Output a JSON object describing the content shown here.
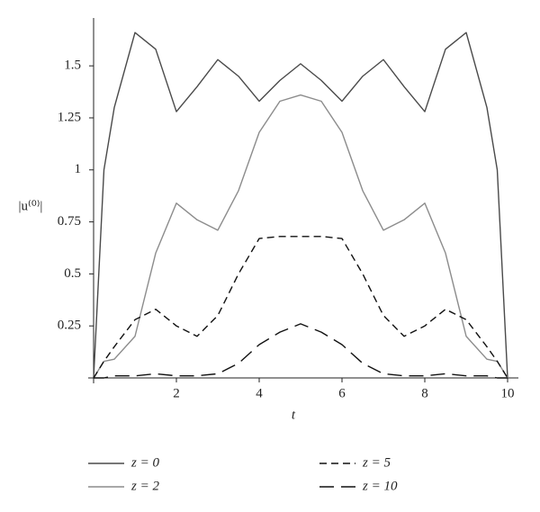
{
  "chart_data": {
    "type": "line",
    "xlabel": "t",
    "ylabel": "|u⁽⁰⁾|",
    "x": [
      0,
      0.25,
      0.5,
      1,
      1.5,
      2,
      2.5,
      3,
      3.5,
      4,
      4.5,
      5,
      5.5,
      6,
      6.5,
      7,
      7.5,
      8,
      8.5,
      9,
      9.5,
      9.75,
      10
    ],
    "series": [
      {
        "name": "z = 0",
        "color": "#4a4a4a",
        "dash": "none",
        "values": [
          0,
          1.0,
          1.3,
          1.66,
          1.58,
          1.28,
          1.4,
          1.53,
          1.45,
          1.33,
          1.43,
          1.51,
          1.43,
          1.33,
          1.45,
          1.53,
          1.4,
          1.28,
          1.58,
          1.66,
          1.3,
          1.0,
          0
        ]
      },
      {
        "name": "z = 2",
        "color": "#8c8c8c",
        "dash": "none",
        "values": [
          0,
          0.08,
          0.09,
          0.2,
          0.6,
          0.84,
          0.76,
          0.71,
          0.9,
          1.18,
          1.33,
          1.36,
          1.33,
          1.18,
          0.9,
          0.71,
          0.76,
          0.84,
          0.6,
          0.2,
          0.09,
          0.08,
          0
        ]
      },
      {
        "name": "z = 5",
        "color": "#111111",
        "dash": "8 5",
        "values": [
          0,
          0.08,
          0.15,
          0.28,
          0.33,
          0.25,
          0.2,
          0.3,
          0.5,
          0.67,
          0.68,
          0.68,
          0.68,
          0.67,
          0.5,
          0.3,
          0.2,
          0.25,
          0.33,
          0.28,
          0.15,
          0.08,
          0
        ]
      },
      {
        "name": "z = 10",
        "color": "#111111",
        "dash": "16 8",
        "values": [
          0,
          0,
          0.01,
          0.01,
          0.02,
          0.01,
          0.01,
          0.02,
          0.07,
          0.16,
          0.22,
          0.26,
          0.22,
          0.16,
          0.07,
          0.02,
          0.01,
          0.01,
          0.02,
          0.01,
          0.01,
          0,
          0
        ]
      }
    ],
    "xlim": [
      0,
      10.25
    ],
    "ylim": [
      0,
      1.73
    ],
    "xticks": [
      2,
      4,
      6,
      8,
      10
    ],
    "yticks": [
      0.25,
      0.5,
      0.75,
      1,
      1.25,
      1.5
    ],
    "grid": false
  }
}
